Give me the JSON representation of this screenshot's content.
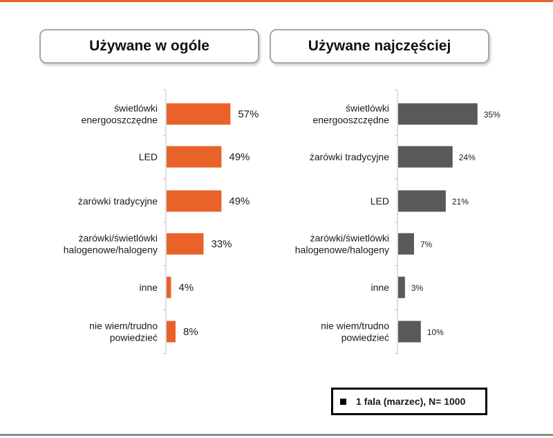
{
  "chart_data": [
    {
      "type": "bar",
      "orientation": "horizontal",
      "title": "Używane w ogóle",
      "categories": [
        "świetlówki\nenergooszczędne",
        "LED",
        "żarówki tradycyjne",
        "żarówki/świetlówki\nhalogenowe/halogeny",
        "inne",
        "nie wiem/trudno\npowiedzieć"
      ],
      "values": [
        57,
        49,
        49,
        33,
        4,
        8
      ],
      "value_labels": [
        "57%",
        "49%",
        "49%",
        "33%",
        "4%",
        "8%"
      ],
      "unit": "%",
      "color": "#e8622a",
      "xlim": [
        0,
        100
      ],
      "grid": false,
      "legend": "bottom-right"
    },
    {
      "type": "bar",
      "orientation": "horizontal",
      "title": "Używane najczęściej",
      "categories": [
        "świetlówki\nenergooszczędne",
        "żarówki tradycyjne",
        "LED",
        "żarówki/świetlówki\nhalogenowe/halogeny",
        "inne",
        "nie wiem/trudno\npowiedzieć"
      ],
      "values": [
        35,
        24,
        21,
        7,
        3,
        10
      ],
      "value_labels": [
        "35%",
        "24%",
        "21%",
        "7%",
        "3%",
        "10%"
      ],
      "unit": "%",
      "color": "#595959",
      "xlim": [
        0,
        100
      ],
      "grid": false,
      "legend": "bottom-right"
    }
  ],
  "legend": {
    "label": "1 fala (marzec), N= 1000",
    "swatch_color": "#000000"
  }
}
